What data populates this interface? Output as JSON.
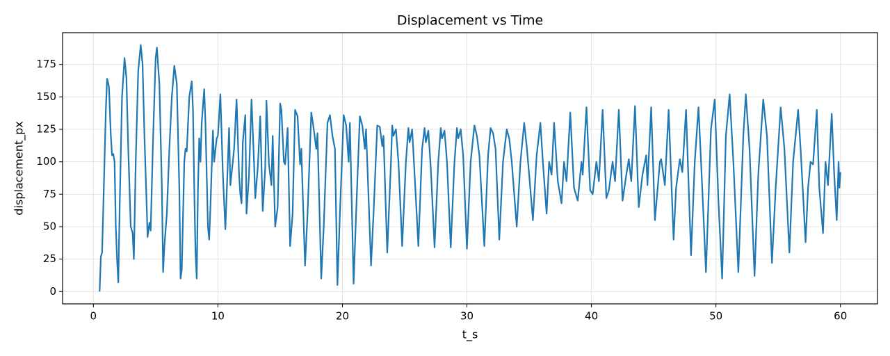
{
  "chart_data": {
    "type": "line",
    "title": "Displacement vs Time",
    "xlabel": "t_s",
    "ylabel": "displacement_px",
    "x": [
      0.5,
      0.6,
      0.7,
      1.0,
      1.1,
      1.25,
      1.4,
      1.5,
      1.6,
      1.7,
      1.8,
      1.9,
      2.0,
      2.1,
      2.3,
      2.5,
      2.65,
      2.8,
      3.0,
      3.15,
      3.25,
      3.4,
      3.6,
      3.8,
      3.95,
      4.1,
      4.3,
      4.35,
      4.5,
      4.6,
      4.8,
      5.0,
      5.1,
      5.3,
      5.5,
      5.6,
      5.7,
      5.9,
      6.1,
      6.3,
      6.5,
      6.7,
      6.9,
      7.0,
      7.1,
      7.3,
      7.4,
      7.5,
      7.7,
      7.9,
      8.0,
      8.1,
      8.2,
      8.3,
      8.4,
      8.5,
      8.6,
      8.7,
      8.9,
      9.0,
      9.2,
      9.3,
      9.4,
      9.6,
      9.7,
      9.9,
      10.0,
      10.2,
      10.4,
      10.6,
      10.8,
      10.9,
      11.0,
      11.2,
      11.3,
      11.5,
      11.7,
      11.8,
      11.9,
      12.0,
      12.2,
      12.3,
      12.5,
      12.7,
      12.9,
      13.0,
      13.2,
      13.4,
      13.6,
      13.8,
      13.9,
      14.1,
      14.3,
      14.4,
      14.6,
      14.8,
      15.0,
      15.1,
      15.3,
      15.4,
      15.6,
      15.8,
      16.0,
      16.2,
      16.4,
      16.6,
      16.7,
      17.0,
      17.2,
      17.5,
      17.7,
      17.9,
      18.0,
      18.3,
      18.5,
      18.8,
      19.0,
      19.2,
      19.4,
      19.6,
      19.8,
      20.1,
      20.3,
      20.5,
      20.6,
      20.9,
      21.1,
      21.4,
      21.6,
      21.8,
      21.9,
      22.3,
      22.5,
      22.8,
      23.0,
      23.2,
      23.3,
      23.6,
      23.9,
      24.0,
      24.1,
      24.3,
      24.5,
      24.8,
      25.1,
      25.3,
      25.4,
      25.6,
      25.8,
      26.1,
      26.4,
      26.6,
      26.7,
      26.9,
      27.1,
      27.4,
      27.7,
      27.9,
      28.0,
      28.2,
      28.4,
      28.7,
      29.0,
      29.2,
      29.3,
      29.5,
      29.7,
      30.0,
      30.3,
      30.6,
      30.8,
      31.0,
      31.4,
      31.7,
      31.9,
      32.1,
      32.3,
      32.6,
      32.9,
      33.2,
      33.4,
      33.6,
      34.0,
      34.3,
      34.6,
      34.8,
      35.0,
      35.3,
      35.6,
      35.9,
      36.1,
      36.4,
      36.6,
      36.8,
      37.0,
      37.3,
      37.6,
      37.8,
      38.0,
      38.3,
      38.6,
      38.9,
      39.2,
      39.3,
      39.6,
      39.9,
      40.1,
      40.4,
      40.6,
      40.9,
      41.2,
      41.4,
      41.7,
      41.9,
      42.2,
      42.5,
      42.8,
      43.0,
      43.2,
      43.5,
      43.8,
      44.1,
      44.4,
      44.5,
      44.8,
      45.1,
      45.5,
      45.6,
      45.9,
      46.2,
      46.6,
      46.8,
      47.1,
      47.3,
      47.6,
      48.0,
      48.3,
      48.6,
      48.9,
      49.2,
      49.6,
      49.9,
      50.2,
      50.5,
      50.8,
      51.1,
      51.4,
      51.8,
      52.2,
      52.4,
      52.7,
      53.1,
      53.4,
      53.8,
      54.1,
      54.5,
      54.8,
      55.2,
      55.5,
      55.9,
      56.2,
      56.6,
      56.8,
      57.2,
      57.4,
      57.6,
      57.8,
      58.1,
      58.3,
      58.6,
      58.8,
      59.0,
      59.3,
      59.5,
      59.7,
      59.85,
      59.92,
      60.0
    ],
    "series": [
      {
        "color": "#1f77b4",
        "values": [
          0,
          27,
          30,
          140,
          164,
          158,
          120,
          105,
          106,
          100,
          50,
          25,
          7,
          60,
          150,
          180,
          165,
          110,
          50,
          45,
          25,
          100,
          170,
          190,
          175,
          120,
          60,
          42,
          53,
          47,
          120,
          180,
          188,
          160,
          80,
          15,
          35,
          60,
          110,
          150,
          174,
          160,
          80,
          10,
          17,
          100,
          110,
          108,
          150,
          162,
          140,
          80,
          30,
          10,
          80,
          118,
          100,
          130,
          156,
          130,
          50,
          40,
          65,
          124,
          100,
          118,
          120,
          152,
          90,
          48,
          100,
          126,
          82,
          100,
          110,
          148,
          90,
          75,
          68,
          115,
          136,
          60,
          90,
          148,
          100,
          72,
          95,
          135,
          62,
          95,
          147,
          98,
          82,
          120,
          50,
          65,
          145,
          140,
          100,
          98,
          126,
          35,
          60,
          140,
          135,
          98,
          110,
          20,
          60,
          138,
          125,
          110,
          122,
          10,
          50,
          130,
          136,
          120,
          110,
          5,
          60,
          136,
          128,
          100,
          130,
          6,
          60,
          135,
          128,
          110,
          125,
          20,
          60,
          128,
          127,
          112,
          120,
          30,
          100,
          128,
          120,
          125,
          100,
          35,
          100,
          126,
          115,
          125,
          90,
          35,
          110,
          126,
          115,
          124,
          95,
          34,
          100,
          126,
          118,
          124,
          100,
          34,
          100,
          126,
          118,
          125,
          105,
          33,
          100,
          128,
          120,
          105,
          35,
          105,
          126,
          122,
          110,
          40,
          100,
          125,
          118,
          100,
          50,
          100,
          130,
          112,
          90,
          55,
          105,
          130,
          100,
          60,
          100,
          90,
          130,
          85,
          68,
          100,
          85,
          138,
          80,
          70,
          100,
          90,
          142,
          78,
          75,
          100,
          85,
          140,
          72,
          78,
          100,
          85,
          140,
          70,
          90,
          102,
          85,
          143,
          65,
          90,
          105,
          82,
          142,
          55,
          100,
          102,
          82,
          140,
          40,
          80,
          102,
          92,
          140,
          28,
          100,
          142,
          80,
          15,
          125,
          148,
          70,
          10,
          120,
          152,
          100,
          15,
          120,
          152,
          110,
          12,
          90,
          148,
          120,
          22,
          80,
          142,
          110,
          30,
          100,
          140,
          110,
          38,
          80,
          100,
          98,
          140,
          80,
          45,
          100,
          82,
          137,
          90,
          55,
          100,
          80,
          92
        ]
      }
    ],
    "xlim": [
      -2.475,
      62.975
    ],
    "ylim": [
      -9.5,
      199.5
    ],
    "xticks": [
      0,
      10,
      20,
      30,
      40,
      50,
      60
    ],
    "yticks": [
      0,
      25,
      50,
      75,
      100,
      125,
      150,
      175
    ],
    "grid": true
  }
}
